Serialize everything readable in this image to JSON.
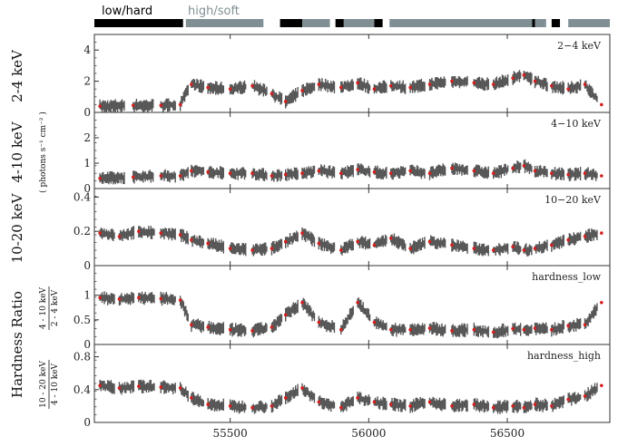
{
  "chart_data": {
    "type": "scatter",
    "x_ticks": [
      55500,
      56000,
      56500
    ],
    "x_range": [
      55010,
      56870
    ],
    "states": {
      "legend": [
        {
          "label": "low/hard",
          "color": "#000000"
        },
        {
          "label": "high/soft",
          "color": "#7f8f94"
        }
      ],
      "bars": [
        {
          "state": "low/hard",
          "start": 55010,
          "end": 55330
        },
        {
          "state": "high/soft",
          "start": 55340,
          "end": 55620
        },
        {
          "state": "low/hard",
          "start": 55680,
          "end": 55760
        },
        {
          "state": "high/soft",
          "start": 55760,
          "end": 55860
        },
        {
          "state": "low/hard",
          "start": 55880,
          "end": 55910
        },
        {
          "state": "high/soft",
          "start": 55910,
          "end": 56020
        },
        {
          "state": "low/hard",
          "start": 56020,
          "end": 56050
        },
        {
          "state": "high/soft",
          "start": 56075,
          "end": 56590
        },
        {
          "state": "low/hard",
          "start": 56590,
          "end": 56600
        },
        {
          "state": "high/soft",
          "start": 56600,
          "end": 56640
        },
        {
          "state": "low/hard",
          "start": 56660,
          "end": 56690
        },
        {
          "state": "high/soft",
          "start": 56720,
          "end": 56870
        }
      ]
    },
    "shared_ylabel": "( photons s⁻¹ cm⁻² )",
    "panels": [
      {
        "name": "2−4 keV",
        "ylabel": "2-4 keV",
        "ylim": [
          0,
          5
        ],
        "yticks": [
          0,
          2,
          4
        ],
        "x": [
          55030,
          55150,
          55250,
          55320,
          55360,
          55420,
          55500,
          55580,
          55650,
          55700,
          55760,
          55820,
          55900,
          55960,
          56020,
          56080,
          56150,
          56220,
          56300,
          56380,
          56450,
          56520,
          56560,
          56600,
          56660,
          56720,
          56780,
          56840
        ],
        "values": [
          0.4,
          0.45,
          0.45,
          0.5,
          1.8,
          1.6,
          1.5,
          1.7,
          1.2,
          0.7,
          1.4,
          1.8,
          1.6,
          1.9,
          1.5,
          1.7,
          1.6,
          1.8,
          2.0,
          1.9,
          1.8,
          2.2,
          2.4,
          2.0,
          1.7,
          1.5,
          1.8,
          0.5
        ]
      },
      {
        "name": "4−10 keV",
        "ylabel": "4-10 keV",
        "ylim": [
          0,
          3
        ],
        "yticks": [
          0,
          1,
          2
        ],
        "x": [
          55030,
          55150,
          55250,
          55320,
          55360,
          55420,
          55500,
          55580,
          55650,
          55700,
          55760,
          55820,
          55900,
          55960,
          56020,
          56080,
          56150,
          56220,
          56300,
          56380,
          56450,
          56520,
          56560,
          56600,
          56660,
          56720,
          56780,
          56840
        ],
        "values": [
          0.4,
          0.45,
          0.5,
          0.5,
          0.7,
          0.65,
          0.6,
          0.6,
          0.5,
          0.55,
          0.6,
          0.7,
          0.6,
          0.75,
          0.65,
          0.6,
          0.7,
          0.6,
          0.8,
          0.7,
          0.6,
          0.8,
          0.9,
          0.7,
          0.6,
          0.55,
          0.6,
          0.5
        ]
      },
      {
        "name": "10−20 keV",
        "ylabel": "10-20 keV",
        "ylim": [
          0,
          0.45
        ],
        "yticks": [
          0,
          0.2,
          0.4
        ],
        "x": [
          55030,
          55100,
          55170,
          55250,
          55320,
          55360,
          55420,
          55500,
          55580,
          55650,
          55700,
          55760,
          55820,
          55900,
          55960,
          56020,
          56080,
          56150,
          56220,
          56300,
          56380,
          56450,
          56520,
          56560,
          56600,
          56660,
          56720,
          56780,
          56840
        ],
        "values": [
          0.19,
          0.17,
          0.2,
          0.19,
          0.18,
          0.15,
          0.13,
          0.1,
          0.09,
          0.1,
          0.14,
          0.19,
          0.13,
          0.09,
          0.14,
          0.12,
          0.16,
          0.1,
          0.14,
          0.12,
          0.1,
          0.09,
          0.11,
          0.09,
          0.1,
          0.12,
          0.15,
          0.17,
          0.19
        ]
      },
      {
        "name": "hardness_low",
        "ylabel": "Hardness Ratio",
        "fraction": {
          "num": "4 - 10 keV",
          "den": "2 - 4 keV"
        },
        "ylim": [
          0,
          1.6
        ],
        "yticks": [
          0,
          0.5,
          1
        ],
        "x": [
          55030,
          55100,
          55170,
          55250,
          55320,
          55360,
          55420,
          55500,
          55580,
          55650,
          55700,
          55760,
          55820,
          55900,
          55960,
          56020,
          56080,
          56150,
          56220,
          56300,
          56380,
          56450,
          56520,
          56560,
          56600,
          56660,
          56720,
          56780,
          56840
        ],
        "values": [
          0.95,
          0.92,
          0.95,
          0.93,
          0.9,
          0.4,
          0.35,
          0.3,
          0.28,
          0.35,
          0.6,
          0.85,
          0.45,
          0.3,
          0.85,
          0.45,
          0.3,
          0.3,
          0.33,
          0.28,
          0.3,
          0.25,
          0.32,
          0.3,
          0.33,
          0.3,
          0.38,
          0.4,
          0.85
        ]
      },
      {
        "name": "hardness_high",
        "ylabel": "",
        "fraction": {
          "num": "10 - 20 keV",
          "den": "4 - 10 keV"
        },
        "ylim": [
          0,
          0.95
        ],
        "yticks": [
          0,
          0.4,
          0.8
        ],
        "x": [
          55030,
          55100,
          55170,
          55250,
          55320,
          55360,
          55420,
          55500,
          55580,
          55650,
          55700,
          55760,
          55820,
          55900,
          55960,
          56020,
          56080,
          56150,
          56220,
          56300,
          56380,
          56450,
          56520,
          56560,
          56600,
          56660,
          56720,
          56780,
          56840
        ],
        "values": [
          0.45,
          0.42,
          0.44,
          0.43,
          0.42,
          0.3,
          0.22,
          0.2,
          0.18,
          0.2,
          0.3,
          0.42,
          0.25,
          0.18,
          0.3,
          0.25,
          0.22,
          0.2,
          0.25,
          0.2,
          0.22,
          0.18,
          0.2,
          0.18,
          0.22,
          0.2,
          0.28,
          0.32,
          0.45
        ]
      }
    ]
  }
}
